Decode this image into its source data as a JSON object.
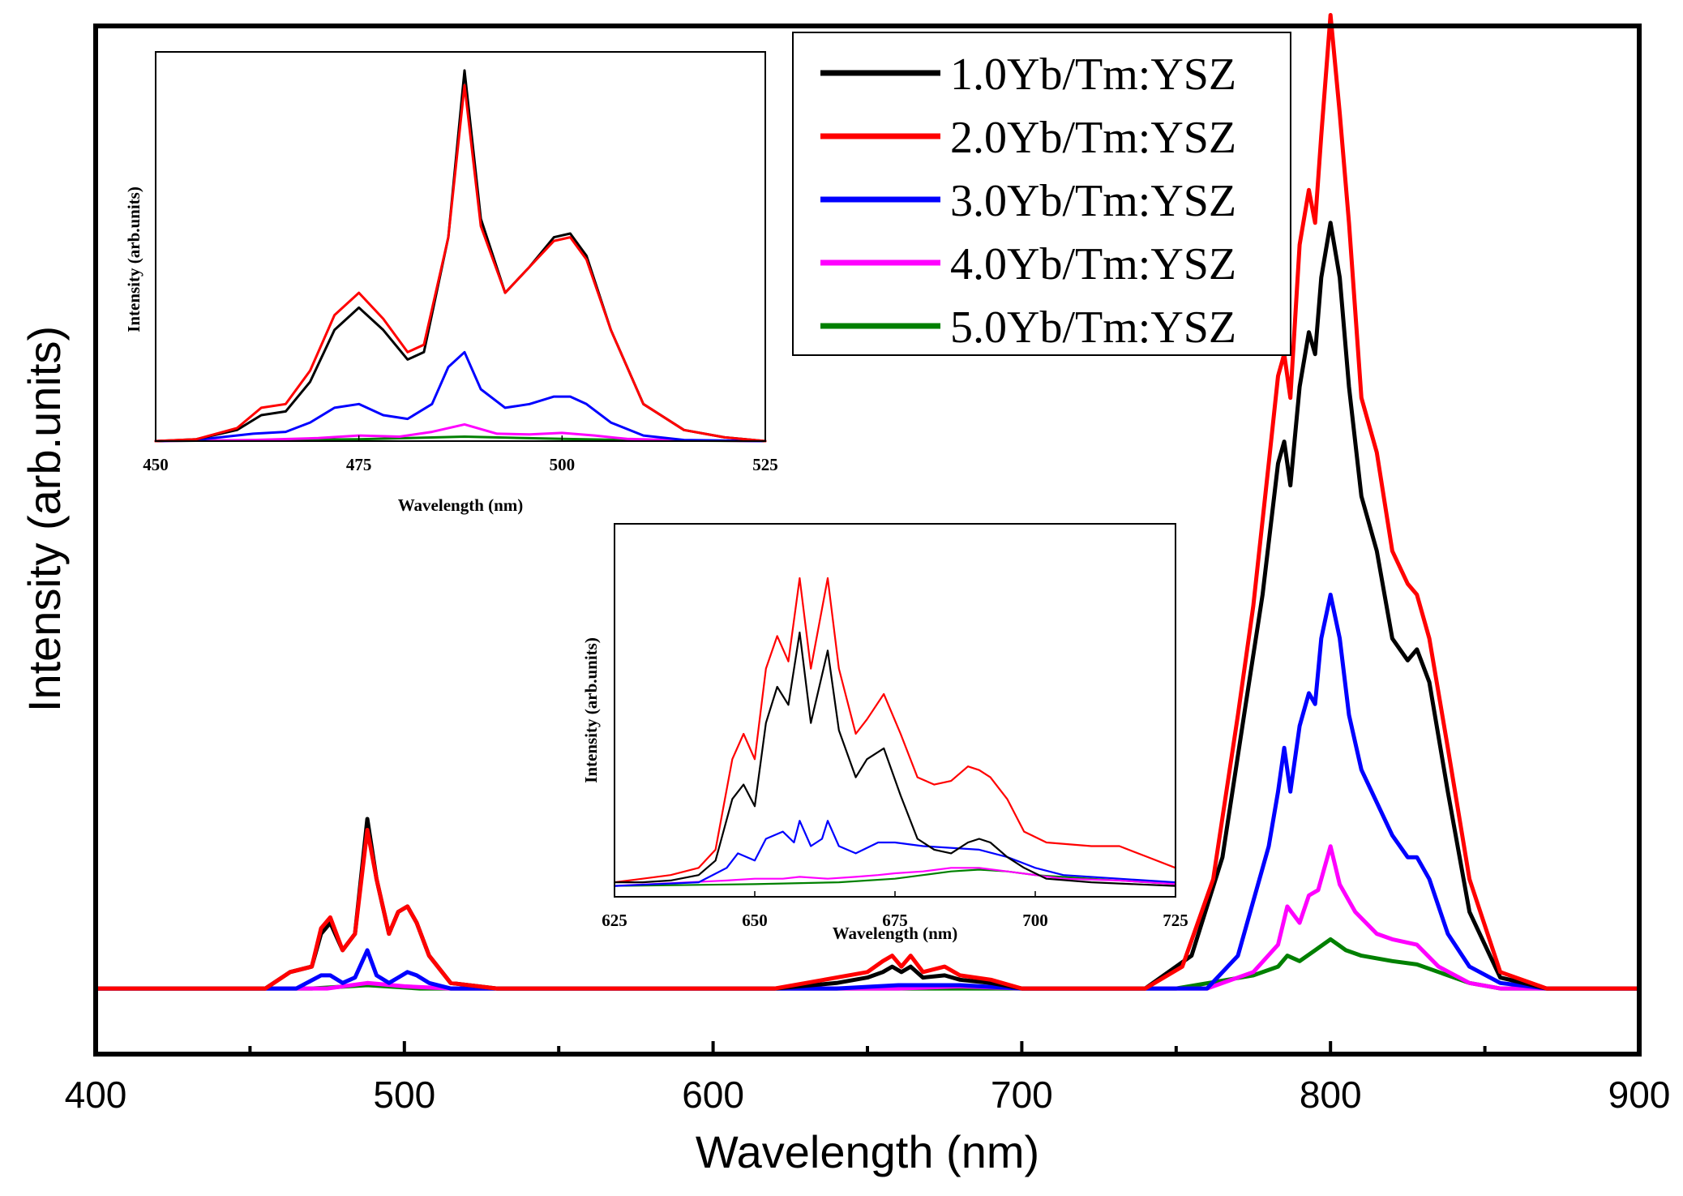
{
  "chart_data": [
    {
      "type": "line",
      "id": "main",
      "title": "",
      "xlabel": "Wavelength (nm)",
      "ylabel": "Intensity (arb.units)",
      "xlim": [
        400,
        900
      ],
      "ylim": [
        -0.6,
        8.8
      ],
      "xticks": [
        400,
        500,
        600,
        700,
        800,
        900
      ],
      "xtick_labels": [
        "400",
        "500",
        "600",
        "700",
        "800",
        "900"
      ],
      "minor_xticks": [
        450,
        550,
        650,
        750,
        850
      ],
      "yticks_shown": false,
      "legend_position": "top-right",
      "series": [
        {
          "name": "1.0Yb/Tm:YSZ",
          "color": "#000000",
          "x": [
            400,
            455,
            463,
            470,
            473,
            476,
            480,
            484,
            488,
            491,
            495,
            498,
            501,
            504,
            508,
            515,
            530,
            620,
            640,
            650,
            655,
            658,
            661,
            664,
            668,
            675,
            680,
            690,
            700,
            740,
            755,
            765,
            772,
            778,
            783,
            785,
            787,
            790,
            793,
            795,
            797,
            800,
            803,
            806,
            810,
            815,
            820,
            825,
            828,
            832,
            838,
            845,
            855,
            870,
            900
          ],
          "y": [
            0,
            0,
            0.15,
            0.2,
            0.5,
            0.6,
            0.35,
            0.5,
            1.55,
            1.0,
            0.5,
            0.7,
            0.75,
            0.6,
            0.3,
            0.05,
            0,
            0,
            0.05,
            0.1,
            0.15,
            0.2,
            0.15,
            0.2,
            0.1,
            0.12,
            0.08,
            0.05,
            0,
            0,
            0.3,
            1.2,
            2.5,
            3.6,
            4.8,
            5.0,
            4.6,
            5.5,
            6.0,
            5.8,
            6.5,
            7.0,
            6.5,
            5.5,
            4.5,
            4.0,
            3.2,
            3.0,
            3.1,
            2.8,
            1.8,
            0.7,
            0.1,
            0,
            0
          ]
        },
        {
          "name": "2.0Yb/Tm:YSZ",
          "color": "#ff0000",
          "x": [
            400,
            455,
            463,
            470,
            473,
            476,
            480,
            484,
            488,
            491,
            495,
            498,
            501,
            504,
            508,
            515,
            530,
            620,
            640,
            650,
            655,
            658,
            661,
            664,
            668,
            675,
            680,
            690,
            700,
            740,
            752,
            762,
            770,
            775,
            780,
            783,
            785,
            787,
            790,
            793,
            795,
            797,
            800,
            803,
            806,
            810,
            815,
            820,
            825,
            828,
            832,
            838,
            845,
            855,
            870,
            900
          ],
          "y": [
            0,
            0,
            0.15,
            0.2,
            0.55,
            0.65,
            0.35,
            0.5,
            1.45,
            1.0,
            0.5,
            0.7,
            0.75,
            0.6,
            0.3,
            0.05,
            0,
            0,
            0.1,
            0.15,
            0.25,
            0.3,
            0.2,
            0.3,
            0.15,
            0.2,
            0.12,
            0.08,
            0,
            0,
            0.2,
            1.0,
            2.5,
            3.5,
            4.8,
            5.6,
            5.8,
            5.4,
            6.8,
            7.3,
            7.0,
            7.8,
            8.9,
            8.0,
            7.0,
            5.4,
            4.9,
            4.0,
            3.7,
            3.6,
            3.2,
            2.2,
            1.0,
            0.15,
            0,
            0
          ]
        },
        {
          "name": "3.0Yb/Tm:YSZ",
          "color": "#0000ff",
          "x": [
            400,
            465,
            473,
            476,
            480,
            484,
            488,
            491,
            495,
            498,
            501,
            504,
            508,
            515,
            640,
            660,
            680,
            700,
            760,
            770,
            775,
            780,
            783,
            785,
            787,
            790,
            793,
            795,
            797,
            800,
            803,
            806,
            810,
            815,
            820,
            825,
            828,
            832,
            838,
            845,
            855,
            870,
            900
          ],
          "y": [
            0,
            0,
            0.12,
            0.12,
            0.05,
            0.1,
            0.35,
            0.12,
            0.05,
            0.1,
            0.15,
            0.12,
            0.05,
            0,
            0,
            0.03,
            0.03,
            0,
            0,
            0.3,
            0.8,
            1.3,
            1.8,
            2.2,
            1.8,
            2.4,
            2.7,
            2.6,
            3.2,
            3.6,
            3.2,
            2.5,
            2.0,
            1.7,
            1.4,
            1.2,
            1.2,
            1.0,
            0.5,
            0.2,
            0.05,
            0,
            0
          ]
        },
        {
          "name": "4.0Yb/Tm:YSZ",
          "color": "#ff00ff",
          "x": [
            400,
            475,
            488,
            500,
            515,
            660,
            680,
            700,
            760,
            775,
            783,
            786,
            790,
            793,
            796,
            800,
            803,
            808,
            815,
            820,
            828,
            835,
            845,
            855,
            900
          ],
          "y": [
            0,
            0,
            0.05,
            0.02,
            0,
            0,
            0.02,
            0,
            0,
            0.15,
            0.4,
            0.75,
            0.6,
            0.85,
            0.9,
            1.3,
            0.95,
            0.7,
            0.5,
            0.45,
            0.4,
            0.2,
            0.05,
            0,
            0
          ]
        },
        {
          "name": "5.0Yb/Tm:YSZ",
          "color": "#008000",
          "x": [
            400,
            470,
            488,
            505,
            750,
            775,
            783,
            786,
            790,
            795,
            800,
            805,
            810,
            820,
            828,
            835,
            845,
            855,
            900
          ],
          "y": [
            0,
            0,
            0.03,
            0,
            0,
            0.12,
            0.2,
            0.3,
            0.25,
            0.35,
            0.45,
            0.35,
            0.3,
            0.25,
            0.22,
            0.15,
            0.05,
            0,
            0
          ]
        }
      ]
    },
    {
      "type": "line",
      "id": "inset-blue",
      "title": "",
      "xlabel": "Wavelength (nm)",
      "ylabel": "Intensity (arb.units)",
      "xlim": [
        450,
        525
      ],
      "ylim": [
        0,
        1.05
      ],
      "xticks": [
        450,
        475,
        500,
        525
      ],
      "xtick_labels": [
        "450",
        "475",
        "500",
        "525"
      ],
      "series": [
        {
          "name": "1.0Yb/Tm:YSZ",
          "color": "#000000",
          "x": [
            450,
            455,
            460,
            463,
            466,
            469,
            472,
            475,
            478,
            481,
            483,
            486,
            488,
            490,
            493,
            496,
            499,
            501,
            503,
            506,
            510,
            515,
            520,
            525
          ],
          "y": [
            0,
            0.005,
            0.03,
            0.07,
            0.08,
            0.16,
            0.3,
            0.36,
            0.3,
            0.22,
            0.24,
            0.55,
            1.0,
            0.6,
            0.4,
            0.47,
            0.55,
            0.56,
            0.5,
            0.3,
            0.1,
            0.03,
            0.01,
            0
          ]
        },
        {
          "name": "2.0Yb/Tm:YSZ",
          "color": "#ff0000",
          "x": [
            450,
            455,
            460,
            463,
            466,
            469,
            472,
            475,
            478,
            481,
            483,
            486,
            488,
            490,
            493,
            496,
            499,
            501,
            503,
            506,
            510,
            515,
            520,
            525
          ],
          "y": [
            0,
            0.005,
            0.035,
            0.09,
            0.1,
            0.19,
            0.34,
            0.4,
            0.33,
            0.24,
            0.26,
            0.55,
            0.96,
            0.58,
            0.4,
            0.47,
            0.54,
            0.55,
            0.49,
            0.3,
            0.1,
            0.03,
            0.01,
            0
          ]
        },
        {
          "name": "3.0Yb/Tm:YSZ",
          "color": "#0000ff",
          "x": [
            450,
            455,
            462,
            466,
            469,
            472,
            475,
            478,
            481,
            484,
            486,
            488,
            490,
            493,
            496,
            499,
            501,
            503,
            506,
            510,
            515,
            525
          ],
          "y": [
            0,
            0.003,
            0.02,
            0.025,
            0.05,
            0.09,
            0.1,
            0.07,
            0.06,
            0.1,
            0.2,
            0.24,
            0.14,
            0.09,
            0.1,
            0.12,
            0.12,
            0.1,
            0.05,
            0.015,
            0.003,
            0
          ]
        },
        {
          "name": "4.0Yb/Tm:YSZ",
          "color": "#ff00ff",
          "x": [
            450,
            462,
            470,
            475,
            480,
            484,
            488,
            492,
            496,
            500,
            504,
            508,
            515,
            525
          ],
          "y": [
            0,
            0.003,
            0.008,
            0.015,
            0.012,
            0.025,
            0.045,
            0.02,
            0.018,
            0.022,
            0.015,
            0.006,
            0.002,
            0
          ]
        },
        {
          "name": "5.0Yb/Tm:YSZ",
          "color": "#008000",
          "x": [
            450,
            465,
            475,
            488,
            500,
            510,
            525
          ],
          "y": [
            0,
            0.003,
            0.005,
            0.012,
            0.006,
            0.002,
            0
          ]
        }
      ]
    },
    {
      "type": "line",
      "id": "inset-red",
      "title": "",
      "xlabel": "Wavelength (nm)",
      "ylabel": "Intensity (arb.units)",
      "xlim": [
        625,
        725
      ],
      "ylim": [
        -0.03,
        1.0
      ],
      "xticks": [
        625,
        650,
        675,
        700,
        725
      ],
      "xtick_labels": [
        "625",
        "650",
        "675",
        "700",
        "725"
      ],
      "series": [
        {
          "name": "1.0Yb/Tm:YSZ",
          "color": "#000000",
          "x": [
            625,
            630,
            635,
            640,
            643,
            646,
            648,
            650,
            652,
            654,
            656,
            658,
            660,
            663,
            665,
            668,
            670,
            673,
            676,
            679,
            682,
            685,
            688,
            690,
            692,
            695,
            698,
            702,
            710,
            725
          ],
          "y": [
            0.01,
            0.01,
            0.015,
            0.03,
            0.07,
            0.24,
            0.28,
            0.22,
            0.45,
            0.55,
            0.5,
            0.7,
            0.45,
            0.65,
            0.43,
            0.3,
            0.35,
            0.38,
            0.25,
            0.13,
            0.1,
            0.09,
            0.12,
            0.13,
            0.12,
            0.08,
            0.05,
            0.02,
            0.01,
            0.0
          ]
        },
        {
          "name": "2.0Yb/Tm:YSZ",
          "color": "#ff0000",
          "x": [
            625,
            630,
            635,
            640,
            643,
            646,
            648,
            650,
            652,
            654,
            656,
            658,
            660,
            663,
            665,
            668,
            670,
            673,
            676,
            679,
            682,
            685,
            688,
            690,
            692,
            695,
            698,
            702,
            710,
            715,
            720,
            725
          ],
          "y": [
            0.01,
            0.02,
            0.03,
            0.05,
            0.1,
            0.35,
            0.42,
            0.35,
            0.6,
            0.69,
            0.62,
            0.85,
            0.6,
            0.85,
            0.6,
            0.42,
            0.46,
            0.53,
            0.42,
            0.3,
            0.28,
            0.29,
            0.33,
            0.32,
            0.3,
            0.24,
            0.15,
            0.12,
            0.11,
            0.11,
            0.08,
            0.05
          ]
        },
        {
          "name": "3.0Yb/Tm:YSZ",
          "color": "#0000ff",
          "x": [
            625,
            640,
            645,
            647,
            650,
            652,
            655,
            657,
            658,
            660,
            662,
            663,
            665,
            668,
            672,
            675,
            680,
            690,
            695,
            700,
            705,
            715,
            725
          ],
          "y": [
            0.0,
            0.01,
            0.05,
            0.09,
            0.07,
            0.13,
            0.15,
            0.12,
            0.18,
            0.11,
            0.13,
            0.18,
            0.11,
            0.09,
            0.12,
            0.12,
            0.11,
            0.1,
            0.08,
            0.05,
            0.03,
            0.02,
            0.01
          ]
        },
        {
          "name": "4.0Yb/Tm:YSZ",
          "color": "#ff00ff",
          "x": [
            625,
            645,
            650,
            655,
            658,
            663,
            668,
            672,
            675,
            680,
            685,
            690,
            695,
            700,
            705,
            715,
            725
          ],
          "y": [
            0.0,
            0.015,
            0.02,
            0.02,
            0.025,
            0.02,
            0.025,
            0.03,
            0.035,
            0.04,
            0.05,
            0.05,
            0.04,
            0.03,
            0.02,
            0.015,
            0.005
          ]
        },
        {
          "name": "5.0Yb/Tm:YSZ",
          "color": "#008000",
          "x": [
            625,
            650,
            665,
            675,
            680,
            685,
            690,
            695,
            700,
            710,
            725
          ],
          "y": [
            0.0,
            0.005,
            0.01,
            0.02,
            0.03,
            0.04,
            0.045,
            0.04,
            0.03,
            0.02,
            0.005
          ]
        }
      ]
    }
  ]
}
